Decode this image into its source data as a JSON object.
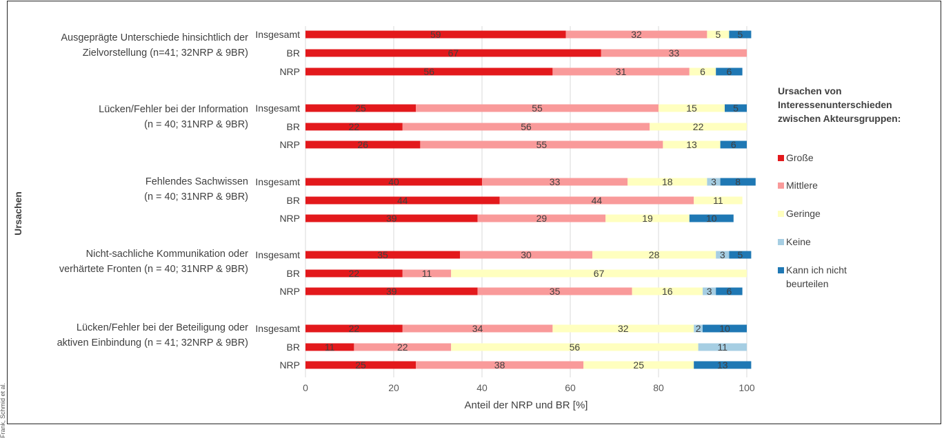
{
  "chart_data": {
    "type": "bar",
    "orientation": "horizontal",
    "stacked": true,
    "ylabel": "Ursachen",
    "xlabel": "Anteil der NRP und BR [%]",
    "xlim": [
      0,
      100
    ],
    "xticks": [
      "0",
      "20",
      "40",
      "60",
      "80",
      "100"
    ],
    "grid": true,
    "legend_position": "right",
    "legend_title": "Ursachen von Interessenunterschieden zwischen Akteursgruppen:",
    "series": [
      {
        "name": "Große",
        "color": "#e3191c"
      },
      {
        "name": "Mittlere",
        "color": "#f99a9a"
      },
      {
        "name": "Geringe",
        "color": "#ffffbf"
      },
      {
        "name": "Keine",
        "color": "#a6cee3"
      },
      {
        "name": "Kann ich nicht beurteilen",
        "color": "#1f78b4"
      }
    ],
    "groups": [
      {
        "title_lines": [
          "Ausgeprägte Unterschiede hinsichtlich der",
          "Zielvorstellung (n=41; 32NRP & 9BR)"
        ],
        "rows": [
          {
            "label": "Insgesamt",
            "values": [
              59,
              32,
              5,
              0,
              5
            ]
          },
          {
            "label": "BR",
            "values": [
              67,
              33,
              0,
              0,
              0
            ]
          },
          {
            "label": "NRP",
            "values": [
              56,
              31,
              6,
              0,
              6
            ]
          }
        ]
      },
      {
        "title_lines": [
          "Lücken/Fehler bei der Information",
          "(n = 40; 31NRP & 9BR)"
        ],
        "rows": [
          {
            "label": "Insgesamt",
            "values": [
              25,
              55,
              15,
              0,
              5
            ]
          },
          {
            "label": "BR",
            "values": [
              22,
              56,
              22,
              0,
              0
            ]
          },
          {
            "label": "NRP",
            "values": [
              26,
              55,
              13,
              0,
              6
            ]
          }
        ]
      },
      {
        "title_lines": [
          "Fehlendes Sachwissen",
          "(n = 40; 31NRP & 9BR)"
        ],
        "rows": [
          {
            "label": "Insgesamt",
            "values": [
              40,
              33,
              18,
              3,
              8
            ]
          },
          {
            "label": "BR",
            "values": [
              44,
              44,
              11,
              0,
              0
            ]
          },
          {
            "label": "NRP",
            "values": [
              39,
              29,
              19,
              0,
              10
            ]
          }
        ]
      },
      {
        "title_lines": [
          "Nicht-sachliche Kommunikation oder",
          "verhärtete Fronten (n = 40; 31NRP & 9BR)"
        ],
        "rows": [
          {
            "label": "Insgesamt",
            "values": [
              35,
              30,
              28,
              3,
              5
            ]
          },
          {
            "label": "BR",
            "values": [
              22,
              11,
              67,
              0,
              0
            ]
          },
          {
            "label": "NRP",
            "values": [
              39,
              35,
              16,
              3,
              6
            ]
          }
        ]
      },
      {
        "title_lines": [
          "Lücken/Fehler bei der Beteiligung oder",
          "aktiven Einbindung (n = 41; 32NRP & 9BR)"
        ],
        "rows": [
          {
            "label": "Insgesamt",
            "values": [
              22,
              34,
              32,
              2,
              10
            ]
          },
          {
            "label": "BR",
            "values": [
              11,
              22,
              56,
              11,
              0
            ]
          },
          {
            "label": "NRP",
            "values": [
              25,
              38,
              25,
              0,
              13
            ]
          }
        ]
      }
    ]
  },
  "credit": "Frank, Schmid et al."
}
